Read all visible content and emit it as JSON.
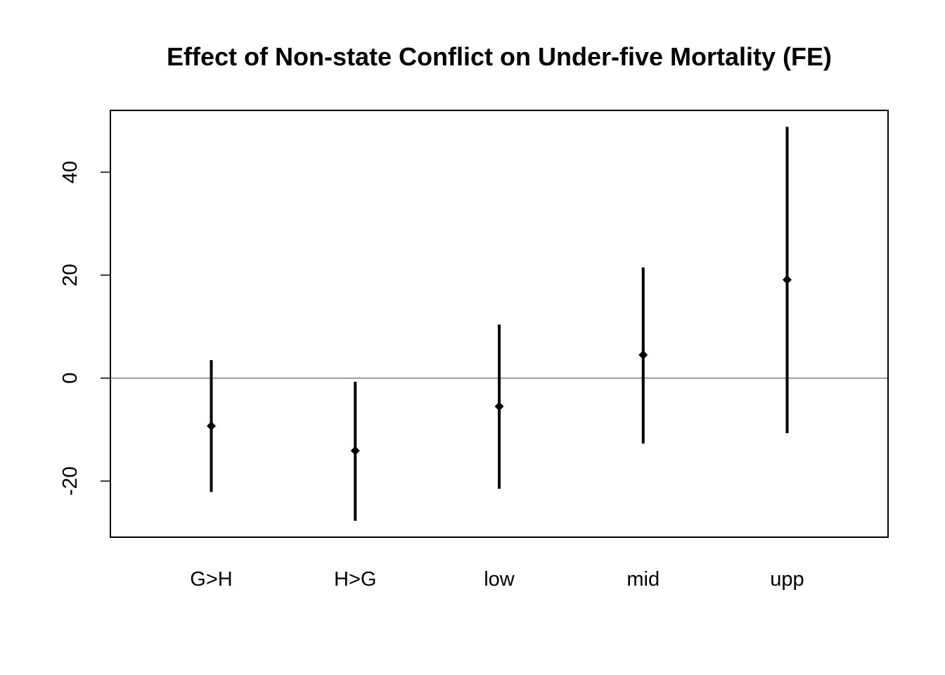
{
  "chart_data": {
    "type": "errorbar",
    "title": "Effect of Non-state Conflict on Under-five Mortality (FE)",
    "xlabel": "",
    "ylabel": "",
    "categories": [
      "G>H",
      "H>G",
      "low",
      "mid",
      "upp"
    ],
    "estimates": [
      -9.3,
      -14.1,
      -5.5,
      4.5,
      19.1
    ],
    "lower": [
      -22.1,
      -27.7,
      -21.5,
      -12.7,
      -10.7
    ],
    "upper": [
      3.5,
      -0.7,
      10.4,
      21.5,
      48.8
    ],
    "ylim": [
      -30.9,
      52.0
    ],
    "yticks": [
      -20,
      0,
      20,
      40
    ],
    "reference_line": 0,
    "grid": false,
    "legend": "none",
    "colors": {
      "marks": "#000000",
      "reference_line": "#7f7f7f",
      "frame": "#000000"
    }
  }
}
